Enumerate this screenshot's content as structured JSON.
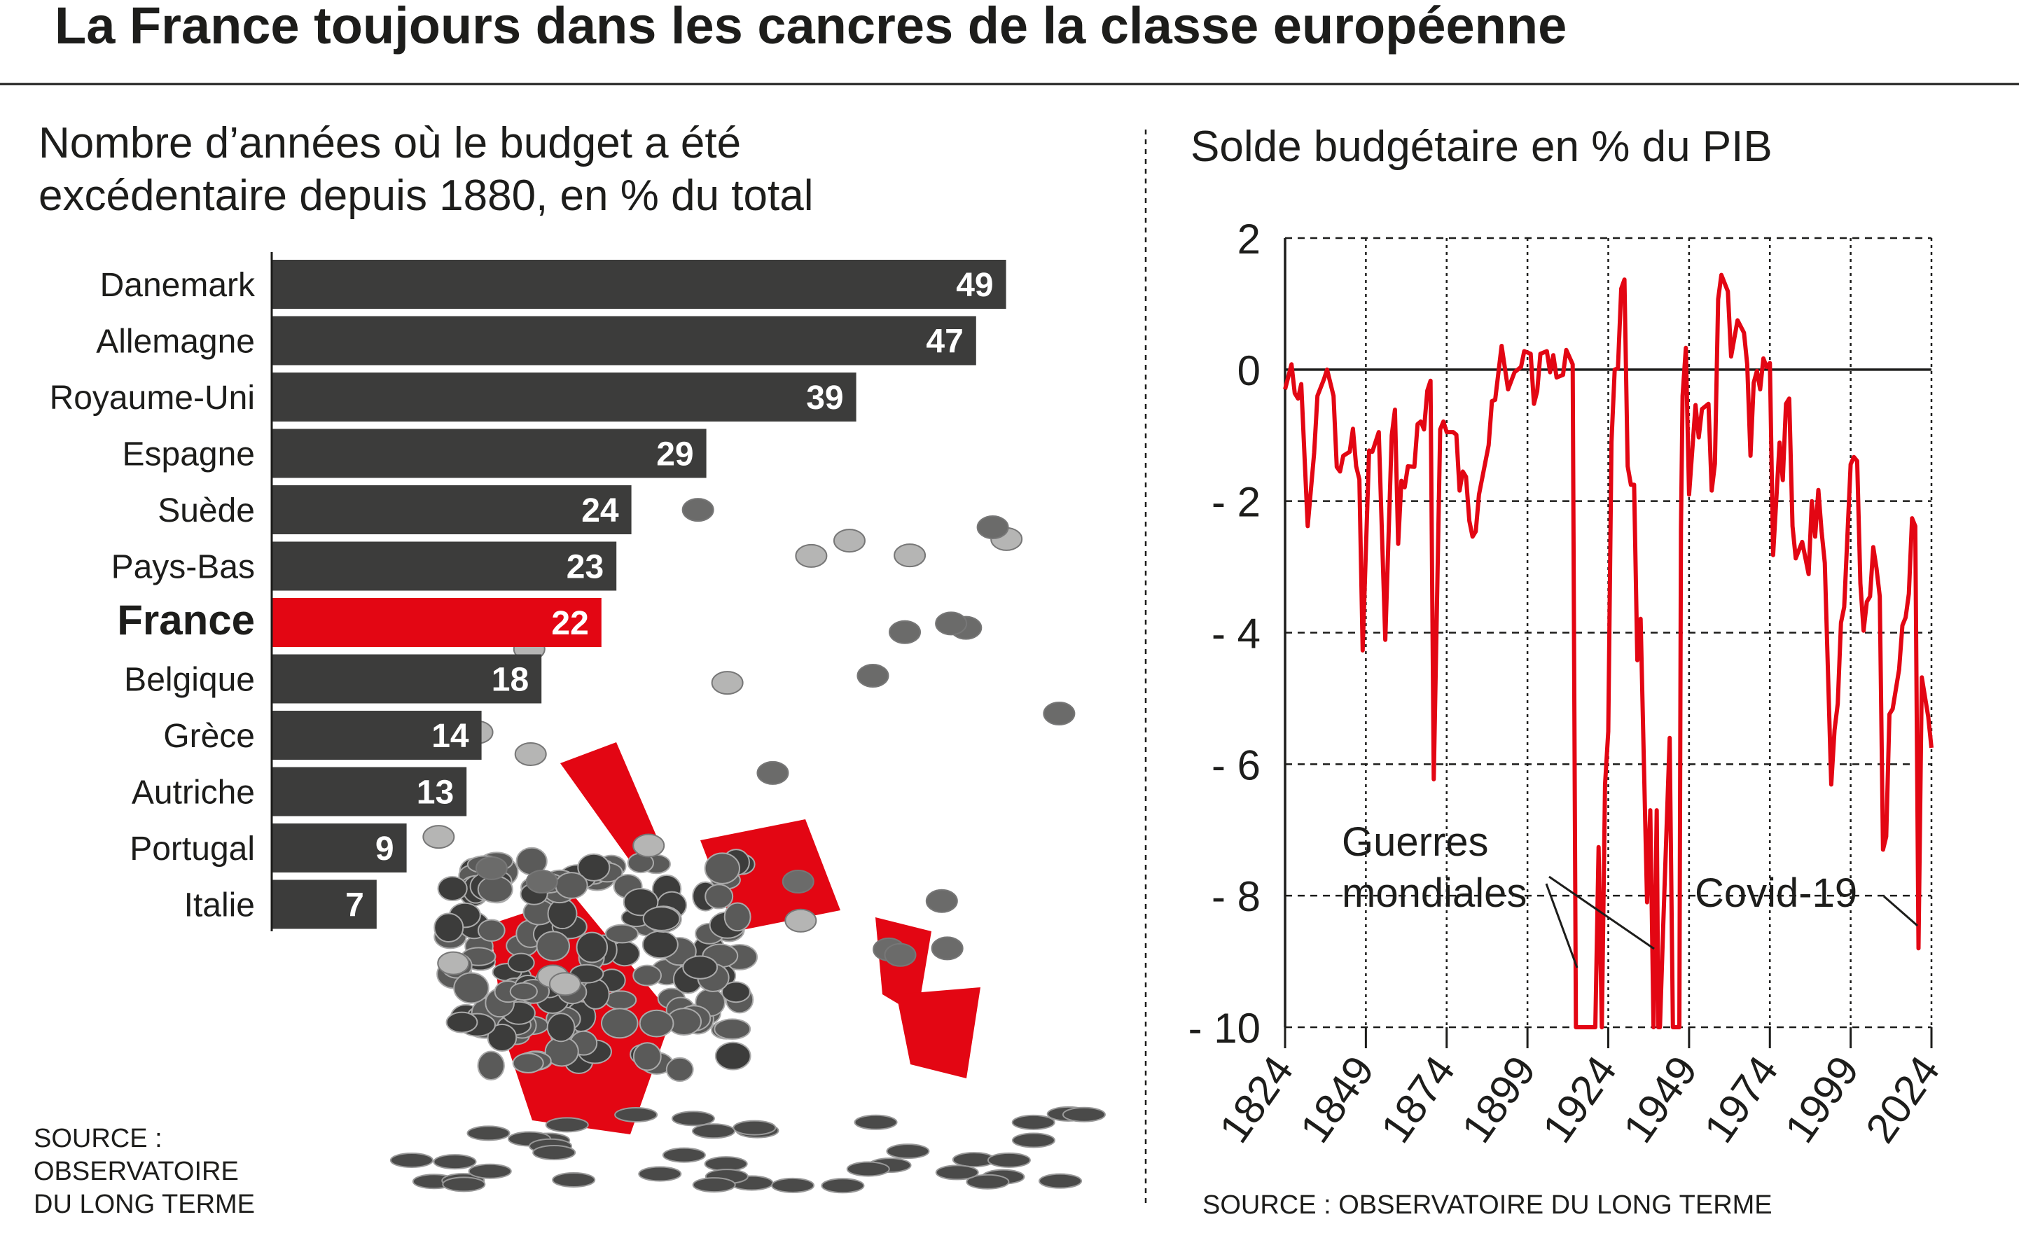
{
  "title": "La France toujours dans les cancres de la classe européenne",
  "colors": {
    "accent": "#e30613",
    "bar": "#3c3c3b",
    "text": "#1d1d1b"
  },
  "illustration": "broken-red-piggy-bank-with-coins",
  "chart_data": [
    {
      "type": "bar",
      "orientation": "horizontal",
      "title_lines": [
        "Nombre d’années où le budget a été",
        "excédentaire depuis 1880, en % du total"
      ],
      "categories": [
        "Danemark",
        "Allemagne",
        "Royaume-Uni",
        "Espagne",
        "Suède",
        "Pays-Bas",
        "France",
        "Belgique",
        "Grèce",
        "Autriche",
        "Portugal",
        "Italie"
      ],
      "values": [
        49,
        47,
        39,
        29,
        24,
        23,
        22,
        18,
        14,
        13,
        9,
        7
      ],
      "highlight": "France",
      "source_lines": [
        "SOURCE :",
        "OBSERVATOIRE",
        "DU LONG TERME"
      ]
    },
    {
      "type": "line",
      "title": "Solde budgétaire en % du PIB",
      "xlim": [
        1824,
        2024
      ],
      "ylim": [
        -10,
        2
      ],
      "xticks": [
        "1824",
        "1849",
        "1874",
        "1899",
        "1924",
        "1949",
        "1974",
        "1999",
        "2024"
      ],
      "yticks": [
        {
          "v": 2,
          "label": "2"
        },
        {
          "v": 0,
          "label": "0"
        },
        {
          "v": -2,
          "label": "- 2"
        },
        {
          "v": -4,
          "label": "- 4"
        },
        {
          "v": -6,
          "label": "- 6"
        },
        {
          "v": -8,
          "label": "- 8"
        },
        {
          "v": -10,
          "label": "- 10"
        }
      ],
      "grid": true,
      "annotations": [
        {
          "label_lines": [
            "Guerres",
            "mondiales"
          ]
        },
        {
          "label": "Covid-19"
        }
      ],
      "source": "SOURCE : OBSERVATOIRE DU LONG TERME",
      "points": [
        [
          1824,
          -0.3
        ],
        [
          1826,
          0.08
        ],
        [
          1827,
          -0.36
        ],
        [
          1828,
          -0.44
        ],
        [
          1829,
          -0.22
        ],
        [
          1831,
          -2.38
        ],
        [
          1833,
          -1.27
        ],
        [
          1834,
          -0.4
        ],
        [
          1836,
          -0.15
        ],
        [
          1837,
          0
        ],
        [
          1839,
          -0.4
        ],
        [
          1840,
          -1.48
        ],
        [
          1841,
          -1.55
        ],
        [
          1842,
          -1.31
        ],
        [
          1844,
          -1.25
        ],
        [
          1845,
          -0.9
        ],
        [
          1846,
          -1.47
        ],
        [
          1847,
          -1.67
        ],
        [
          1848,
          -4.27
        ],
        [
          1850,
          -1.23
        ],
        [
          1851,
          -1.25
        ],
        [
          1853,
          -0.95
        ],
        [
          1855,
          -4.11
        ],
        [
          1857,
          -1.0
        ],
        [
          1858,
          -0.61
        ],
        [
          1859,
          -2.65
        ],
        [
          1860,
          -1.69
        ],
        [
          1861,
          -1.79
        ],
        [
          1862,
          -1.47
        ],
        [
          1864,
          -1.48
        ],
        [
          1865,
          -0.83
        ],
        [
          1866,
          -0.79
        ],
        [
          1867,
          -0.91
        ],
        [
          1868,
          -0.32
        ],
        [
          1869,
          -0.17
        ],
        [
          1870,
          -6.23
        ],
        [
          1872,
          -0.91
        ],
        [
          1873,
          -0.79
        ],
        [
          1874,
          -0.95
        ],
        [
          1876,
          -0.95
        ],
        [
          1877,
          -0.99
        ],
        [
          1878,
          -1.84
        ],
        [
          1879,
          -1.55
        ],
        [
          1880,
          -1.63
        ],
        [
          1881,
          -2.3
        ],
        [
          1882,
          -2.54
        ],
        [
          1883,
          -2.46
        ],
        [
          1884,
          -1.9
        ],
        [
          1887,
          -1.15
        ],
        [
          1888,
          -0.48
        ],
        [
          1889,
          -0.46
        ],
        [
          1891,
          0.36
        ],
        [
          1893,
          -0.3
        ],
        [
          1895,
          -0.04
        ],
        [
          1897,
          0.04
        ],
        [
          1898,
          0.28
        ],
        [
          1900,
          0.24
        ],
        [
          1901,
          -0.52
        ],
        [
          1902,
          -0.33
        ],
        [
          1903,
          0.24
        ],
        [
          1905,
          0.28
        ],
        [
          1906,
          -0.04
        ],
        [
          1907,
          0.22
        ],
        [
          1908,
          -0.12
        ],
        [
          1910,
          -0.08
        ],
        [
          1911,
          0.3
        ],
        [
          1913,
          0.08
        ],
        [
          1914,
          -10
        ],
        [
          1915,
          -10
        ],
        [
          1916,
          -10
        ],
        [
          1917,
          -10
        ],
        [
          1918,
          -10
        ],
        [
          1919,
          -10
        ],
        [
          1920,
          -10
        ],
        [
          1921,
          -7.26
        ],
        [
          1922,
          -10
        ],
        [
          1923,
          -6.31
        ],
        [
          1924,
          -5.5
        ],
        [
          1925,
          -1.1
        ],
        [
          1926,
          0
        ],
        [
          1927,
          0.02
        ],
        [
          1928,
          1.23
        ],
        [
          1929,
          1.37
        ],
        [
          1930,
          -1.47
        ],
        [
          1931,
          -1.75
        ],
        [
          1932,
          -1.75
        ],
        [
          1933,
          -4.42
        ],
        [
          1934,
          -3.79
        ],
        [
          1936,
          -8.1
        ],
        [
          1937,
          -6.7
        ],
        [
          1938,
          -10
        ],
        [
          1939,
          -6.7
        ],
        [
          1939.5,
          -10
        ],
        [
          1940,
          -10
        ],
        [
          1941,
          -8.45
        ],
        [
          1943,
          -5.6
        ],
        [
          1944,
          -10
        ],
        [
          1945,
          -10
        ],
        [
          1946,
          -10
        ],
        [
          1946.5,
          -2.42
        ],
        [
          1947,
          -0.4
        ],
        [
          1948,
          0.33
        ],
        [
          1949,
          -1.9
        ],
        [
          1951,
          -0.54
        ],
        [
          1952,
          -1.03
        ],
        [
          1953,
          -0.6
        ],
        [
          1955,
          -0.52
        ],
        [
          1956,
          -1.84
        ],
        [
          1957,
          -1.43
        ],
        [
          1958,
          1.07
        ],
        [
          1959,
          1.44
        ],
        [
          1961,
          1.19
        ],
        [
          1962,
          0.2
        ],
        [
          1964,
          0.75
        ],
        [
          1966,
          0.56
        ],
        [
          1967,
          0.08
        ],
        [
          1968,
          -1.31
        ],
        [
          1969,
          -0.2
        ],
        [
          1970,
          -0.02
        ],
        [
          1971,
          -0.3
        ],
        [
          1972,
          0.17
        ],
        [
          1973,
          0.04
        ],
        [
          1974,
          0.1
        ],
        [
          1975,
          -2.82
        ],
        [
          1977,
          -1.11
        ],
        [
          1978,
          -1.68
        ],
        [
          1979,
          -0.52
        ],
        [
          1980,
          -0.44
        ],
        [
          1981,
          -2.38
        ],
        [
          1982,
          -2.87
        ],
        [
          1984,
          -2.62
        ],
        [
          1986,
          -3.11
        ],
        [
          1987,
          -2.0
        ],
        [
          1988,
          -2.54
        ],
        [
          1989,
          -1.83
        ],
        [
          1990,
          -2.46
        ],
        [
          1991,
          -2.94
        ],
        [
          1993,
          -6.31
        ],
        [
          1994,
          -5.48
        ],
        [
          1995,
          -5.08
        ],
        [
          1996,
          -3.85
        ],
        [
          1997,
          -3.61
        ],
        [
          1999,
          -1.44
        ],
        [
          2000,
          -1.33
        ],
        [
          2001,
          -1.39
        ],
        [
          2002,
          -3.25
        ],
        [
          2003,
          -3.97
        ],
        [
          2004,
          -3.53
        ],
        [
          2005,
          -3.45
        ],
        [
          2006,
          -2.7
        ],
        [
          2007,
          -3.02
        ],
        [
          2008,
          -3.45
        ],
        [
          2009,
          -7.3
        ],
        [
          2010,
          -7.1
        ],
        [
          2011,
          -5.24
        ],
        [
          2012,
          -5.16
        ],
        [
          2014,
          -4.56
        ],
        [
          2015,
          -3.89
        ],
        [
          2016,
          -3.77
        ],
        [
          2017,
          -3.41
        ],
        [
          2018,
          -2.26
        ],
        [
          2019,
          -2.38
        ],
        [
          2020,
          -8.8
        ],
        [
          2021,
          -4.68
        ],
        [
          2023,
          -5.28
        ],
        [
          2024,
          -5.75
        ]
      ]
    }
  ]
}
